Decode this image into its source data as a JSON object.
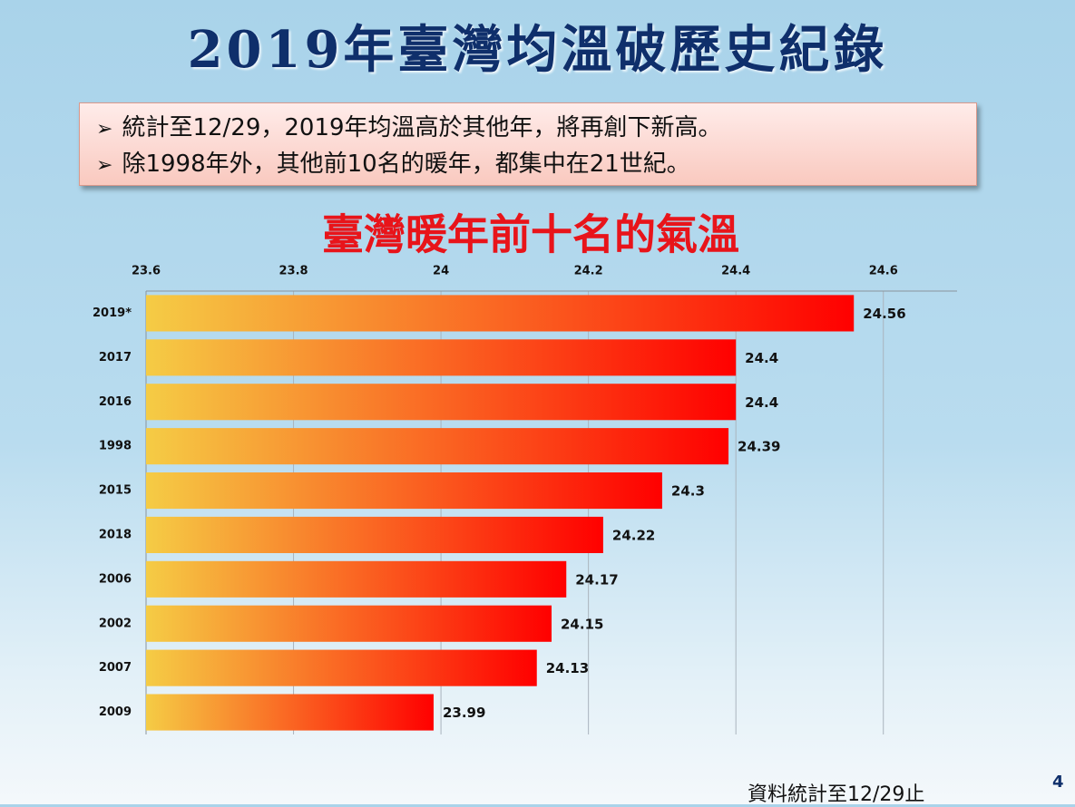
{
  "slide": {
    "title": "2019年臺灣均溫破歷史紀錄",
    "bullets": [
      "統計至12/29，2019年均溫高於其他年，將再創下新高。",
      "除1998年外，其他前10名的暖年，都集中在21世紀。"
    ],
    "footnote": "資料統計至12/29止",
    "page_number": "4"
  },
  "chart_data": {
    "type": "bar",
    "orientation": "horizontal",
    "title": "臺灣暖年前十名的氣溫",
    "categories": [
      "2019*",
      "2017",
      "2016",
      "1998",
      "2015",
      "2018",
      "2006",
      "2002",
      "2007",
      "2009"
    ],
    "values": [
      24.56,
      24.4,
      24.4,
      24.39,
      24.3,
      24.22,
      24.17,
      24.15,
      24.13,
      23.99
    ],
    "color_start": "#f5cc45",
    "color_end": "#ff0000",
    "xlim": [
      23.6,
      24.7
    ],
    "xticks": [
      23.6,
      23.8,
      24,
      24.2,
      24.4,
      24.6
    ],
    "grid": true
  }
}
